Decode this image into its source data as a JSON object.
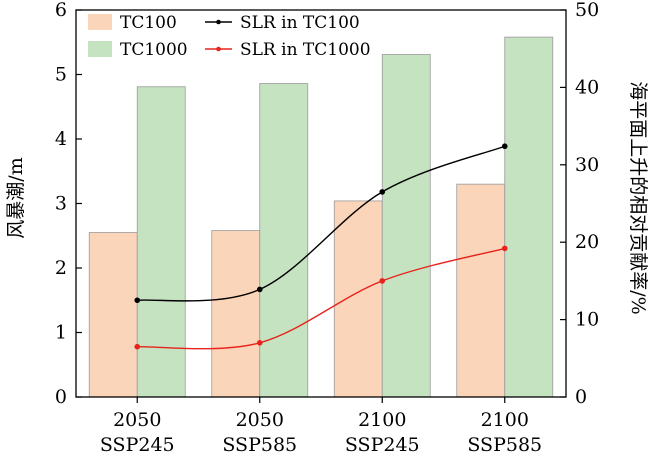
{
  "chart_data": {
    "type": "bar",
    "categories": [
      [
        "2050",
        "SSP245"
      ],
      [
        "2050",
        "SSP585"
      ],
      [
        "2100",
        "SSP245"
      ],
      [
        "2100",
        "SSP585"
      ]
    ],
    "ylabel": "风暴潮/m",
    "y2label": "海平面上升的相对贡献率/%",
    "ylim": [
      0,
      6
    ],
    "y2lim": [
      0,
      50
    ],
    "yticks": [
      "0",
      "1",
      "2",
      "3",
      "4",
      "5",
      "6"
    ],
    "y2ticks": [
      "0",
      "10",
      "20",
      "30",
      "40",
      "50"
    ],
    "grid": false,
    "legend_position": "top-left",
    "bar_series": [
      {
        "name": "TC100",
        "values": [
          2.55,
          2.58,
          3.04,
          3.3
        ],
        "color": "#fbd5b9"
      },
      {
        "name": "TC1000",
        "values": [
          4.81,
          4.86,
          5.31,
          5.58
        ],
        "color": "#c5e2c1"
      }
    ],
    "line_series": [
      {
        "name": "SLR in TC100",
        "axis": "right",
        "values": [
          12.5,
          13.9,
          26.5,
          32.4
        ],
        "color": "#000000"
      },
      {
        "name": "SLR in TC1000",
        "axis": "right",
        "values": [
          6.5,
          7.0,
          15.0,
          19.2
        ],
        "color": "#e8231c"
      }
    ]
  }
}
